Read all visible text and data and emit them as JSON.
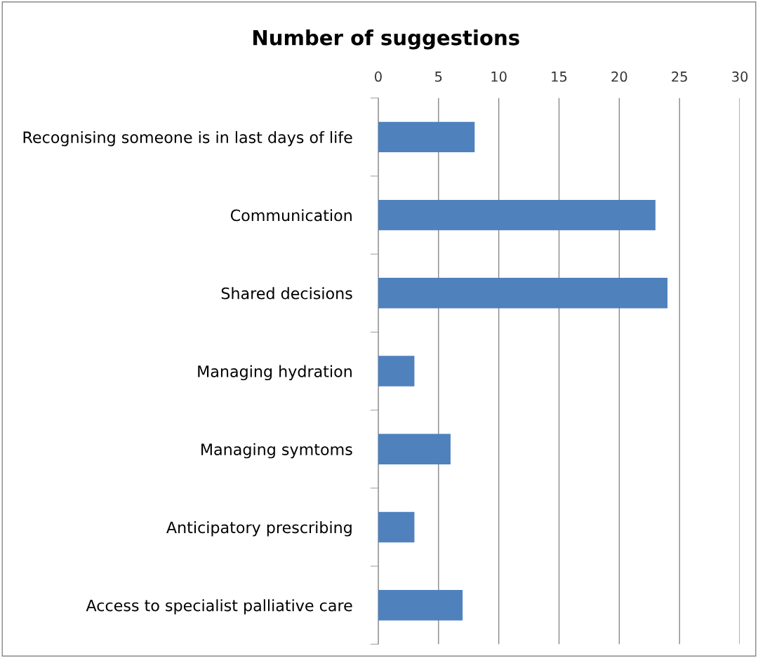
{
  "chart_data": {
    "type": "bar",
    "orientation": "horizontal",
    "title": "Number of suggestions",
    "categories": [
      "Recognising someone is in last days of life",
      "Communication",
      "Shared decisions",
      "Managing hydration",
      "Managing symtoms",
      "Anticipatory prescribing",
      "Access to specialist palliative care"
    ],
    "values": [
      8,
      23,
      24,
      3,
      6,
      3,
      7
    ],
    "color": "#4f81bd",
    "xlim": [
      0,
      30
    ],
    "xticks": [
      0,
      5,
      10,
      15,
      20,
      25,
      30
    ],
    "grid": "x"
  }
}
